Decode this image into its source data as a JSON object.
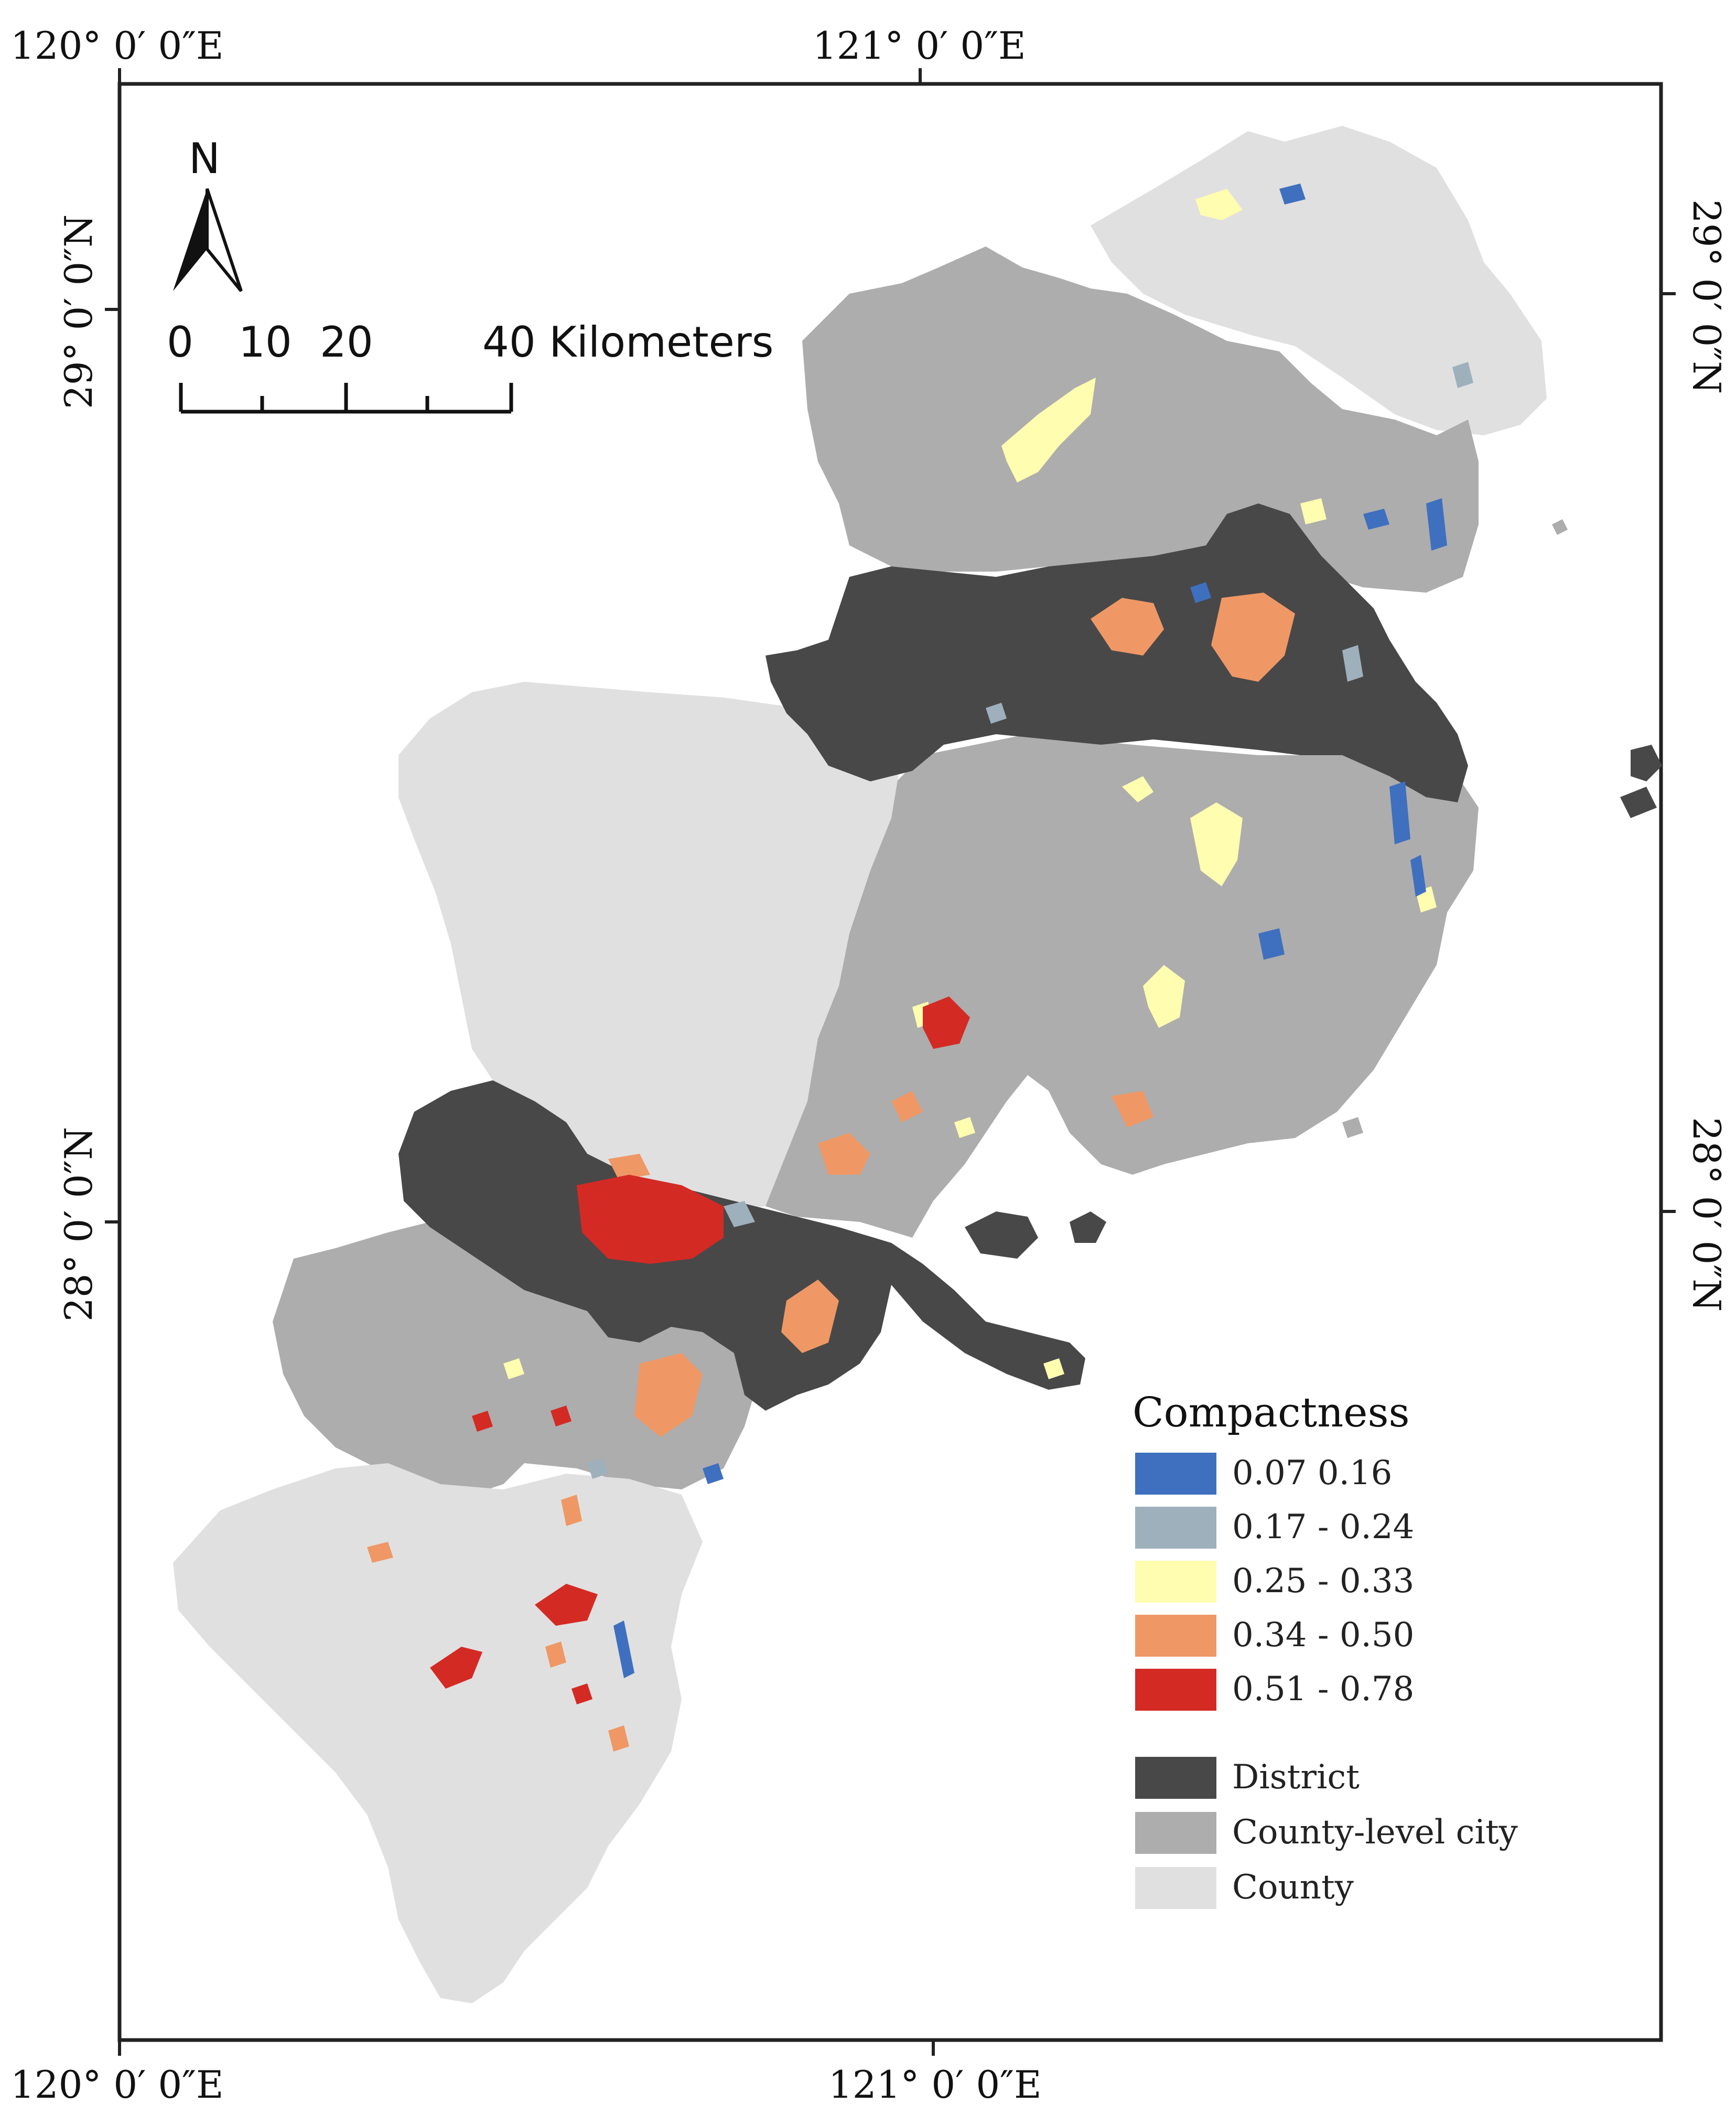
{
  "colors": {
    "district": "#484848",
    "county_city": "#adadad",
    "county": "#e0e0e0",
    "c1": "#3f6fbf",
    "c2": "#9fb0bd",
    "c3": "#fffdb0",
    "c4": "#ef9866",
    "c5": "#d42a24"
  },
  "graticule": {
    "top": [
      "120° 0′ 0″E",
      "121° 0′ 0″E"
    ],
    "bottom": [
      "120° 0′ 0″E",
      "121° 0′ 0″E"
    ],
    "left": [
      "29° 0′ 0″N",
      "28° 0′ 0″N"
    ],
    "right": [
      "29° 0′ 0″N",
      "28° 0′ 0″N"
    ]
  },
  "north_arrow": {
    "label": "N"
  },
  "scale_bar": {
    "ticks": [
      "0",
      "10",
      "20"
    ],
    "end_label": "40 Kilometers"
  },
  "legend": {
    "title": "Compactness",
    "classes": [
      {
        "label": "0.07  0.16",
        "color": "#3f6fbf"
      },
      {
        "label": "0.17 - 0.24",
        "color": "#9fb0bd"
      },
      {
        "label": "0.25 - 0.33",
        "color": "#fffdb0"
      },
      {
        "label": "0.34 - 0.50",
        "color": "#ef9866"
      },
      {
        "label": "0.51 - 0.78",
        "color": "#d42a24"
      }
    ],
    "admin": [
      {
        "label": "District",
        "color": "#484848"
      },
      {
        "label": "County-level city",
        "color": "#adadad"
      },
      {
        "label": "County",
        "color": "#e0e0e0"
      }
    ]
  }
}
